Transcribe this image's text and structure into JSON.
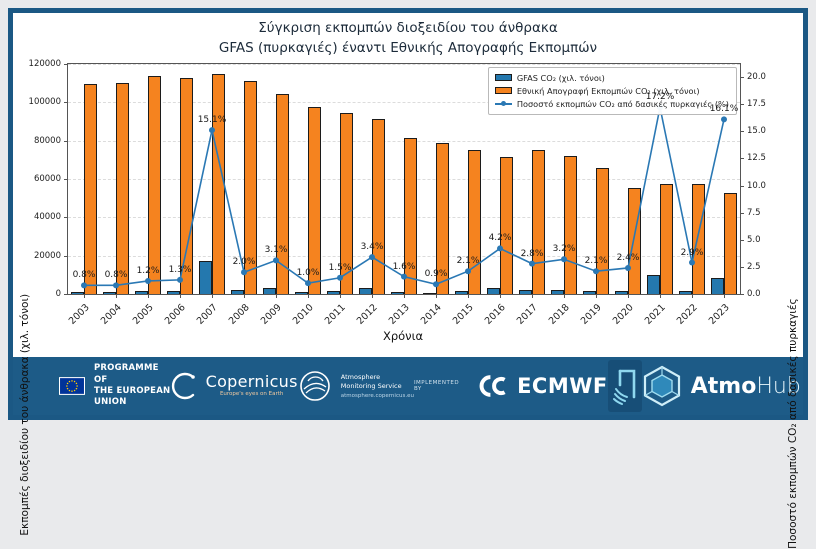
{
  "title": {
    "line1": "Σύγκριση εκπομπών διοξειδίου του άνθρακα",
    "line2": "GFAS (πυρκαγιές) έναντι Εθνικής Απογραφής Εκπομπών"
  },
  "chart_data": {
    "type": "bar",
    "categories": [
      "2003",
      "2004",
      "2005",
      "2006",
      "2007",
      "2008",
      "2009",
      "2010",
      "2011",
      "2012",
      "2013",
      "2014",
      "2015",
      "2016",
      "2017",
      "2018",
      "2019",
      "2020",
      "2021",
      "2022",
      "2023"
    ],
    "series": [
      {
        "name": "GFAS CO₂ (χιλ. τόνοι)",
        "type": "bar",
        "axis": "left",
        "color": "#2478ae",
        "values": [
          875,
          880,
          1370,
          1470,
          17400,
          2220,
          3240,
          980,
          1420,
          3110,
          1300,
          710,
          1580,
          3000,
          2100,
          2300,
          1380,
          1330,
          9900,
          1670,
          8400
        ]
      },
      {
        "name": "Εθνική Απογραφή Εκπομπών CO₂ (χιλ. τόνοι)",
        "type": "bar",
        "axis": "left",
        "color": "#f5831f",
        "values": [
          109500,
          110000,
          114000,
          112500,
          115000,
          111000,
          104500,
          97500,
          94500,
          91500,
          81500,
          79000,
          75000,
          71500,
          75000,
          72000,
          65500,
          55500,
          57500,
          57500,
          52500
        ]
      },
      {
        "name": "Ποσοστό εκπομπών CO₂ από δασικές πυρκαγιές (%)",
        "type": "line",
        "axis": "right",
        "color": "#2a78b4",
        "values": [
          0.8,
          0.8,
          1.2,
          1.3,
          15.1,
          2.0,
          3.1,
          1.0,
          1.5,
          3.4,
          1.6,
          0.9,
          2.1,
          4.2,
          2.8,
          3.2,
          2.1,
          2.4,
          17.2,
          2.9,
          16.1
        ],
        "labels": [
          "0.8%",
          "0.8%",
          "1.2%",
          "1.3%",
          "15.1%",
          "2.0%",
          "3.1%",
          "1.0%",
          "1.5%",
          "3.4%",
          "1.6%",
          "0.9%",
          "2.1%",
          "4.2%",
          "2.8%",
          "3.2%",
          "2.1%",
          "2.4%",
          "17.2%",
          "2.9%",
          "16.1%"
        ]
      }
    ],
    "xlabel": "Χρόνια",
    "ylabel_left": "Εκπομπές διοξειδίου του άνθρακα (χιλ. τόνοι)",
    "ylabel_right": "Ποσοστό εκπομπών CO₂ από δασικές πυρκαγιές",
    "ylim_left": [
      0,
      120000
    ],
    "ylim_right": [
      0,
      21.2
    ],
    "yticks_left": [
      0,
      20000,
      40000,
      60000,
      80000,
      100000,
      120000
    ],
    "yticks_right": [
      0.0,
      2.5,
      5.0,
      7.5,
      10.0,
      12.5,
      15.0,
      17.5,
      20.0
    ],
    "grid": true,
    "legend_position": "upper right"
  },
  "footer": {
    "eu": {
      "line1": "PROGRAMME OF",
      "line2": "THE EUROPEAN UNION"
    },
    "copernicus": {
      "name": "Copernicus",
      "tagline": "Europe's eyes on Earth"
    },
    "ams": {
      "line1": "Atmosphere",
      "line2": "Monitoring Service",
      "url": "atmosphere.copernicus.eu"
    },
    "implemented_by": "IMPLEMENTED BY",
    "ecmwf": {
      "name": "ECMWF"
    },
    "atmohub": {
      "bold": "Atmo",
      "light": "Hub"
    }
  },
  "colors": {
    "frame_blue": "#1b5884",
    "footer_blue": "#1d5b87",
    "gfas_bar": "#2478ae",
    "national_bar": "#f5831f",
    "pct_line": "#2a78b4"
  }
}
